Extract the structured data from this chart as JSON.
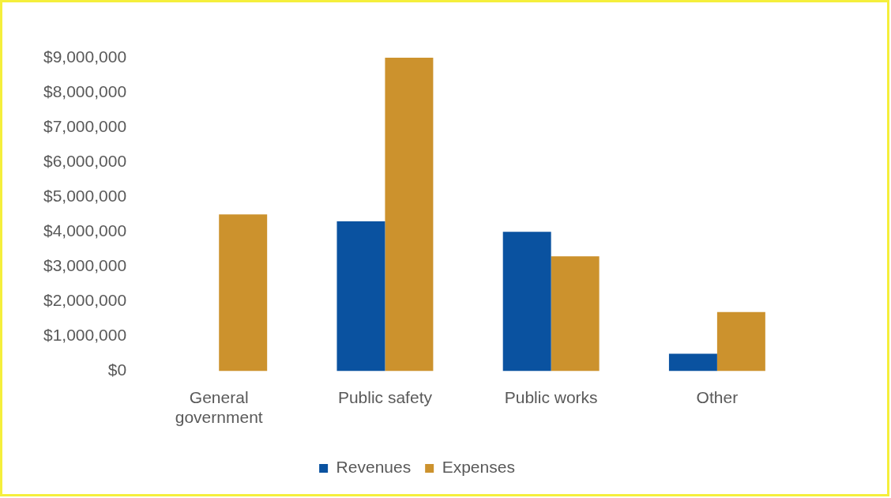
{
  "chart_data": {
    "type": "bar",
    "categories": [
      "General government",
      "Public safety",
      "Public works",
      "Other"
    ],
    "series": [
      {
        "name": "Revenues",
        "color": "#0a52a0",
        "values": [
          0,
          4300000,
          4000000,
          500000
        ]
      },
      {
        "name": "Expenses",
        "color": "#cc922d",
        "values": [
          4500000,
          9000000,
          3300000,
          1700000
        ]
      }
    ],
    "ylim": [
      0,
      9000000
    ],
    "yticks": [
      {
        "value": 0,
        "label": "$0"
      },
      {
        "value": 1000000,
        "label": "$1,000,000"
      },
      {
        "value": 2000000,
        "label": "$2,000,000"
      },
      {
        "value": 3000000,
        "label": "$3,000,000"
      },
      {
        "value": 4000000,
        "label": "$4,000,000"
      },
      {
        "value": 5000000,
        "label": "$5,000,000"
      },
      {
        "value": 6000000,
        "label": "$6,000,000"
      },
      {
        "value": 7000000,
        "label": "$7,000,000"
      },
      {
        "value": 8000000,
        "label": "$8,000,000"
      },
      {
        "value": 9000000,
        "label": "$9,000,000"
      }
    ],
    "grid": false,
    "legend": "bottom"
  }
}
